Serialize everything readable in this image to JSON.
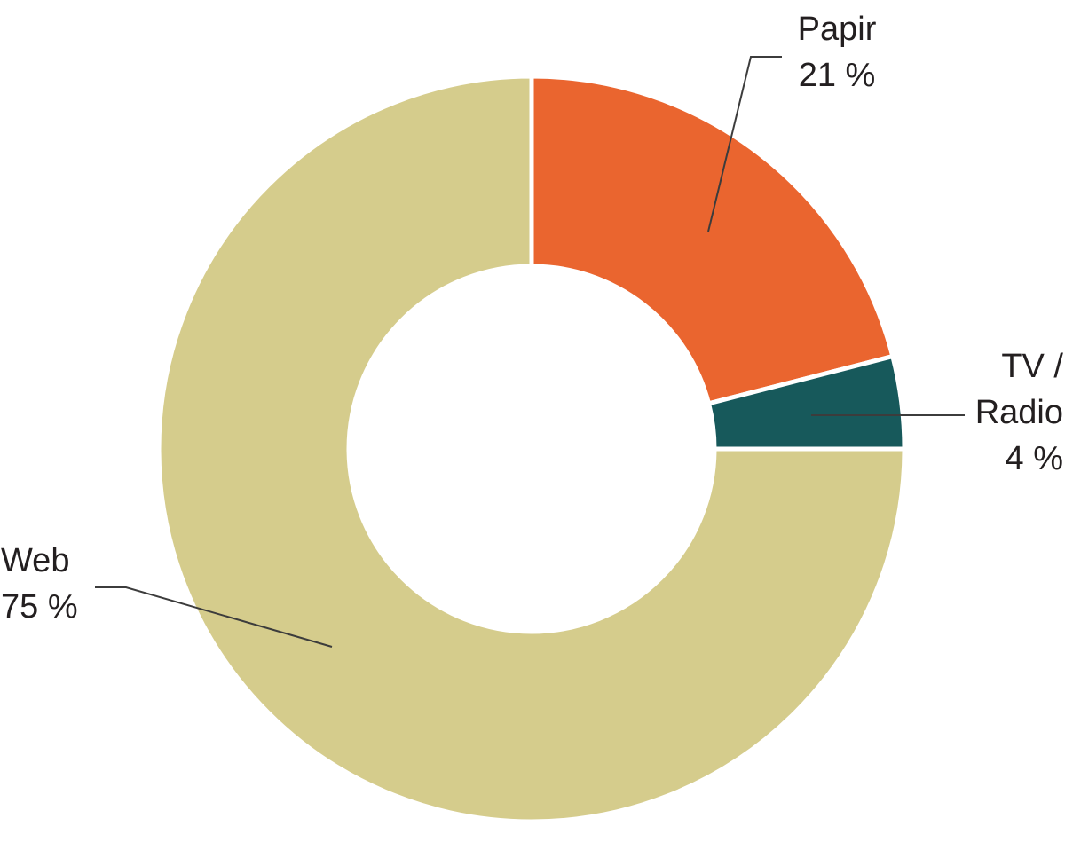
{
  "chart_data": {
    "type": "pie",
    "subtype": "donut",
    "title": "",
    "start_angle_deg": 0,
    "direction": "clockwise",
    "background_color": "#FFFFFF",
    "separator_color": "#FFFFFF",
    "text_color": "#231F20",
    "leader_line_color": "#3C3C3C",
    "categories": [
      "Papir",
      "TV / Radio",
      "Web"
    ],
    "values": [
      21,
      4,
      75
    ],
    "unit": "%",
    "slices": [
      {
        "name": "Papir",
        "value": 21,
        "color": "#EA652F",
        "label_lines": [
          "Papir",
          "21 %"
        ]
      },
      {
        "name": "TV / Radio",
        "value": 4,
        "color": "#17595B",
        "label_lines": [
          "TV /",
          "Radio",
          "4 %"
        ]
      },
      {
        "name": "Web",
        "value": 75,
        "color": "#D5CC8C",
        "label_lines": [
          "Web",
          "75 %"
        ]
      }
    ]
  }
}
